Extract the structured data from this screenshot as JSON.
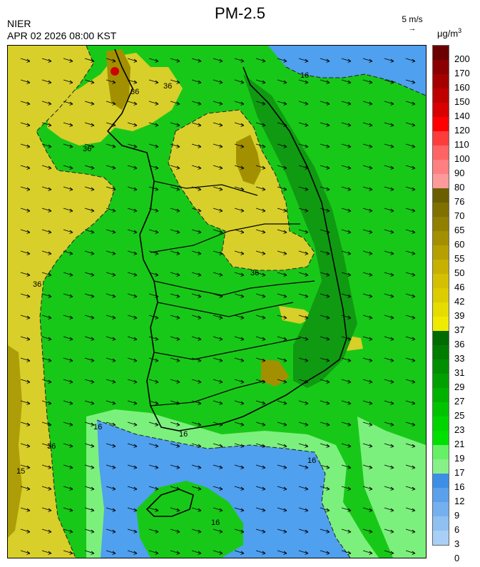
{
  "header": {
    "title": "PM-2.5",
    "agency": "NIER",
    "datetime": "APR 02 2026 08:00 KST",
    "wind_scale": "5 m/s",
    "wind_arrow": "→",
    "unit_main": "μg/m",
    "unit_exp": "3"
  },
  "map": {
    "contour_labels": [
      "36",
      "36",
      "36",
      "36",
      "36",
      "16",
      "16",
      "16",
      "16",
      "16",
      "15",
      "36"
    ],
    "wind_direction": "east-southeast"
  },
  "legend": {
    "labels": [
      "200",
      "170",
      "160",
      "150",
      "140",
      "120",
      "110",
      "100",
      "90",
      "80",
      "76",
      "70",
      "65",
      "60",
      "55",
      "50",
      "46",
      "42",
      "39",
      "37",
      "36",
      "33",
      "31",
      "29",
      "27",
      "25",
      "23",
      "21",
      "19",
      "17",
      "16",
      "12",
      "9",
      "6",
      "3",
      "0"
    ],
    "colors": [
      "#6a0000",
      "#8b0000",
      "#a50000",
      "#bf0000",
      "#d80000",
      "#ff0000",
      "#ff3c3c",
      "#ff6464",
      "#ff8080",
      "#ff9a9a",
      "#6b5e00",
      "#7f7000",
      "#917f00",
      "#a39000",
      "#b5a000",
      "#c7b000",
      "#d4c000",
      "#dccc00",
      "#e6dc00",
      "#f0ea00",
      "#006b00",
      "#007d00",
      "#008f00",
      "#00a000",
      "#00b200",
      "#00c400",
      "#00d400",
      "#00e000",
      "#66f066",
      "#88f088",
      "#3d8fe6",
      "#5aa0ea",
      "#74b0ee",
      "#8ec0f2",
      "#a8d0f6"
    ],
    "band_colors": {
      "blue": "#4fa0ee",
      "light_green": "#7cf07c",
      "green": "#18c818",
      "dark_green": "#0f9a12",
      "yellow": "#d8cf2a",
      "olive": "#a39000",
      "red": "#d00000"
    }
  }
}
